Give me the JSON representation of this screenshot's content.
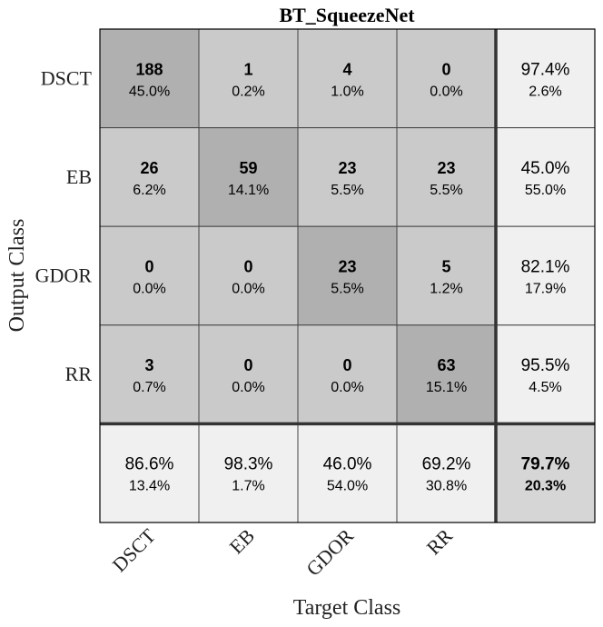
{
  "chart_data": {
    "type": "heatmap",
    "title": "BT_SqueezeNet",
    "xlabel": "Target Class",
    "ylabel": "Output Class",
    "classes": [
      "DSCT",
      "EB",
      "GDOR",
      "RR"
    ],
    "matrix": [
      [
        188,
        1,
        4,
        0
      ],
      [
        26,
        59,
        23,
        23
      ],
      [
        0,
        0,
        23,
        5
      ],
      [
        3,
        0,
        0,
        63
      ]
    ],
    "cell_percent": [
      [
        "45.0%",
        "0.2%",
        "1.0%",
        "0.0%"
      ],
      [
        "6.2%",
        "14.1%",
        "5.5%",
        "5.5%"
      ],
      [
        "0.0%",
        "0.0%",
        "5.5%",
        "1.2%"
      ],
      [
        "0.7%",
        "0.0%",
        "0.0%",
        "15.1%"
      ]
    ],
    "row_summary": [
      [
        "97.4%",
        "2.6%"
      ],
      [
        "45.0%",
        "55.0%"
      ],
      [
        "82.1%",
        "17.9%"
      ],
      [
        "95.5%",
        "4.5%"
      ]
    ],
    "column_summary": [
      [
        "86.6%",
        "13.4%"
      ],
      [
        "98.3%",
        "1.7%"
      ],
      [
        "46.0%",
        "54.0%"
      ],
      [
        "69.2%",
        "30.8%"
      ]
    ],
    "overall": [
      "79.7%",
      "20.3%"
    ],
    "colors": {
      "diagonal": "#b0b0b0",
      "off_diagonal": "#cacaca",
      "summary": "#f0f0f0",
      "overall": "#d6d6d6",
      "grid": "#333333"
    }
  }
}
